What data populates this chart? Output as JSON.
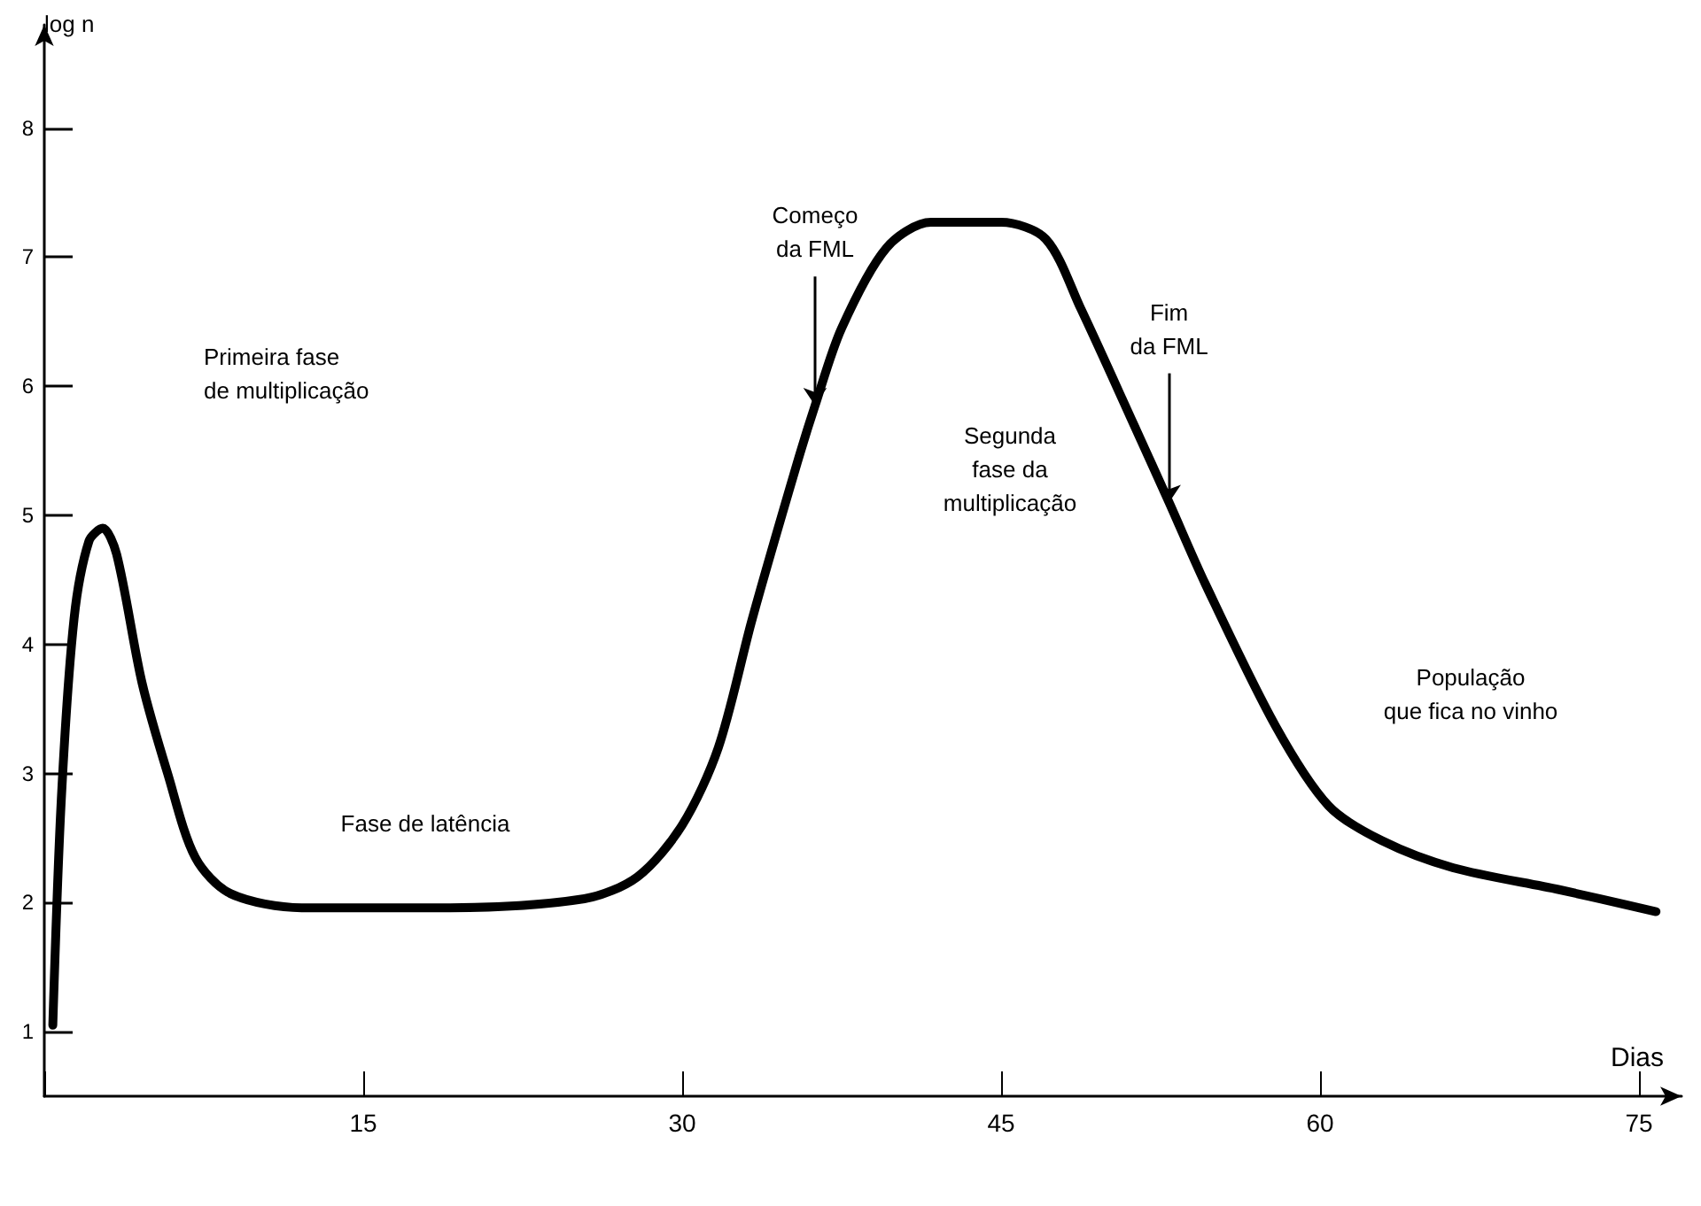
{
  "chart_data": {
    "type": "line",
    "ylabel": "log n",
    "xlabel": "Dias",
    "x": [
      0.4,
      0.8,
      1.4,
      2.1,
      2.75,
      3.4,
      4.6,
      5.8,
      7.1,
      8.75,
      12.1,
      18.75,
      25.4,
      27.9,
      30,
      31.7,
      33.3,
      35.4,
      36.25,
      37.5,
      39.6,
      41.7,
      45,
      47.1,
      48.75,
      51.25,
      52.9,
      54.6,
      57.9,
      60.4,
      62.9,
      66.25,
      71.25,
      75.8
    ],
    "series": [
      {
        "color": "#000000",
        "values": [
          1.05,
          2.8,
          4.2,
          4.8,
          4.9,
          4.7,
          3.7,
          3.0,
          2.35,
          2.07,
          1.96,
          1.96,
          2.03,
          2.2,
          2.6,
          3.2,
          4.2,
          5.4,
          5.85,
          6.45,
          7.07,
          7.27,
          7.27,
          7.14,
          6.6,
          5.7,
          5.1,
          4.47,
          3.37,
          2.75,
          2.48,
          2.27,
          2.1,
          1.93
        ]
      }
    ],
    "xlim": [
      0,
      77
    ],
    "ylim": [
      0.5,
      8.8
    ],
    "xticks": [
      {
        "value": 0,
        "label": null
      },
      15,
      30,
      45,
      60,
      75
    ],
    "yticks": [
      1,
      2,
      3,
      4,
      5,
      6,
      7,
      8
    ],
    "grid": false,
    "marker": "none",
    "line_style": "solid",
    "annotations": [
      "Primeira fase\nde multiplicação",
      {
        "text": "Começo\nda FML",
        "x": 36.25,
        "y": 5.85
      },
      "Fase de latência",
      "Segunda\nfase da\nmultiplicação",
      {
        "text": "Fim\nda FML",
        "x": 52.9,
        "y": 5.1
      },
      "População\nque fica no vinho"
    ]
  }
}
